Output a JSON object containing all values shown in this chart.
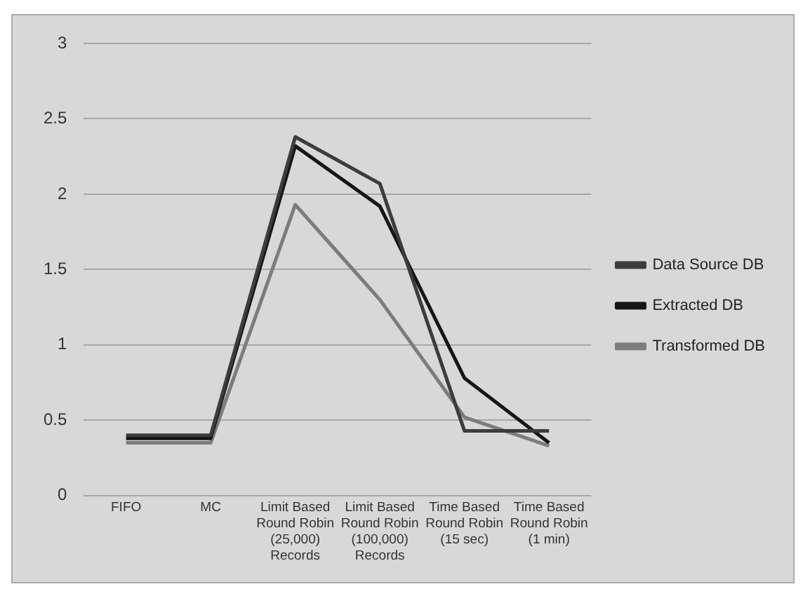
{
  "chart_data": {
    "type": "line",
    "categories": [
      "FIFO",
      "MC",
      "Limit Based Round Robin (25,000) Records",
      "Limit Based Round Robin (100,000) Records",
      "Time Based Round Robin (15 sec)",
      "Time Based Round Robin (1 min)"
    ],
    "series": [
      {
        "name": "Data Source DB",
        "color": "#3c3c3c",
        "values": [
          0.4,
          0.4,
          2.38,
          2.07,
          0.43,
          0.43
        ]
      },
      {
        "name": "Extracted DB",
        "color": "#161616",
        "values": [
          0.38,
          0.38,
          2.32,
          1.92,
          0.78,
          0.35
        ]
      },
      {
        "name": "Transformed DB",
        "color": "#7c7c7c",
        "values": [
          0.35,
          0.35,
          1.93,
          1.3,
          0.52,
          0.33
        ]
      }
    ],
    "ylim": [
      0,
      3
    ],
    "yticks": [
      0,
      0.5,
      1,
      1.5,
      2,
      2.5,
      3
    ],
    "grid": "y",
    "legend": "right",
    "marker": "none",
    "line_style": "solid"
  }
}
